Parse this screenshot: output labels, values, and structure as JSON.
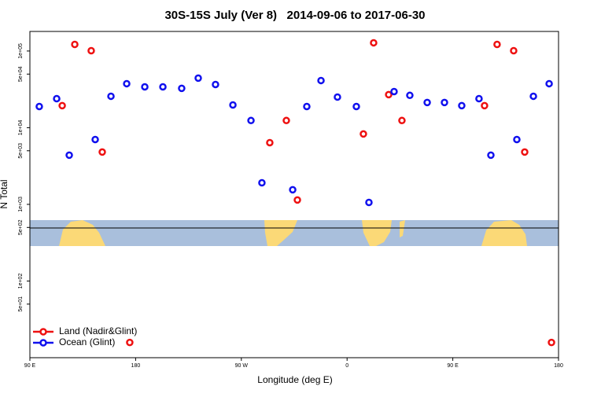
{
  "chart_data": {
    "type": "scatter",
    "title": "30S-15S July (Ver 8)   2014-09-06 to 2017-06-30",
    "xlabel": "Longitude (deg E)",
    "ylabel": "N Total",
    "yscale": "log",
    "legend": "lower left",
    "xlim": [
      90,
      540
    ],
    "xticks": [
      {
        "value": 90,
        "label": "90 E"
      },
      {
        "value": 180,
        "label": "180"
      },
      {
        "value": 270,
        "label": "90 W"
      },
      {
        "value": 360,
        "label": "0"
      },
      {
        "value": 450,
        "label": "90 E"
      },
      {
        "value": 540,
        "label": "180"
      }
    ],
    "ylim": [
      10,
      180000
    ],
    "yticks": [
      {
        "value": 50,
        "label": "5e+01"
      },
      {
        "value": 100,
        "label": "1e+02"
      },
      {
        "value": 500,
        "label": "5e+02"
      },
      {
        "value": 1000,
        "label": "1e+03"
      },
      {
        "value": 5000,
        "label": "5e+03"
      },
      {
        "value": 10000,
        "label": "1e+04"
      },
      {
        "value": 50000,
        "label": "5e+04"
      },
      {
        "value": 100000,
        "label": "1e+05"
      }
    ],
    "series": [
      {
        "name": "Land (Nadir&Glint)",
        "color": "#ee1111",
        "x": [
          117.5,
          128.2,
          142.2,
          151.6,
          175,
          294.2,
          308.3,
          317.7,
          373.9,
          382.6,
          395.4,
          406.7,
          477,
          487.7,
          501.8,
          511.2,
          534
        ],
        "values": [
          19400,
          122000,
          101000,
          4810,
          15.8,
          6380,
          12400,
          1140,
          8280,
          128000,
          27000,
          12400,
          19400,
          122000,
          101000,
          4810,
          15.8
        ]
      },
      {
        "name": "Ocean (Glint)",
        "color": "#1111ee",
        "x": [
          98,
          112.8,
          123.5,
          145.6,
          159,
          172.4,
          187.8,
          203.2,
          219.2,
          233.3,
          248,
          262.8,
          278.2,
          287.5,
          313.7,
          325.7,
          337.8,
          351.8,
          367.9,
          378.6,
          400,
          413.4,
          428.2,
          442.9,
          457.6,
          472.3,
          482.4,
          504.5,
          518.6,
          532
        ],
        "values": [
          18900,
          23900,
          4380,
          7010,
          25700,
          37500,
          34100,
          34100,
          32600,
          44300,
          36600,
          19800,
          12400,
          1910,
          1550,
          18900,
          41200,
          25100,
          18900,
          1060,
          29600,
          26400,
          21300,
          21300,
          19400,
          23900,
          4380,
          7010,
          25700,
          37500
        ]
      }
    ]
  }
}
